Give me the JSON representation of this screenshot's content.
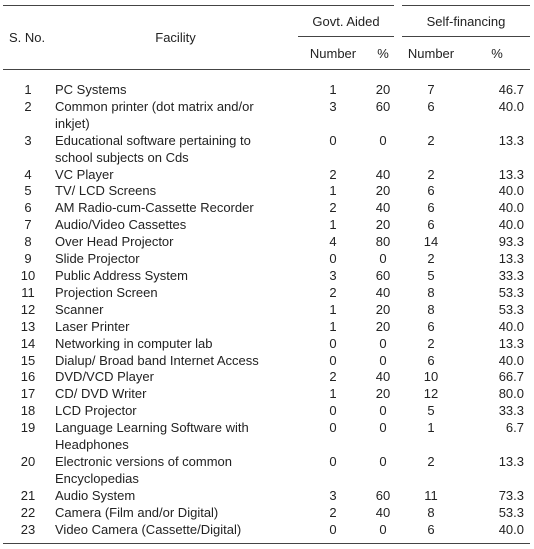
{
  "header": {
    "sno": "S. No.",
    "facility": "Facility",
    "groups": [
      "Govt. Aided",
      "Self-financing"
    ],
    "columns": [
      "Number",
      "%",
      "Number",
      "%"
    ]
  },
  "table": {
    "rows": [
      [
        "1",
        "PC Systems",
        "1",
        "20",
        "7",
        "46.7"
      ],
      [
        "2",
        "Common printer (dot matrix and/or inkjet)",
        "3",
        "60",
        "6",
        "40.0"
      ],
      [
        "3",
        "Educational software pertaining to school subjects on Cds",
        "0",
        "0",
        "2",
        "13.3"
      ],
      [
        "4",
        "VC Player",
        "2",
        "40",
        "2",
        "13.3"
      ],
      [
        "5",
        "TV/ LCD Screens",
        "1",
        "20",
        "6",
        "40.0"
      ],
      [
        "6",
        "AM Radio-cum-Cassette Recorder",
        "2",
        "40",
        "6",
        "40.0"
      ],
      [
        "7",
        "Audio/Video Cassettes",
        "1",
        "20",
        "6",
        "40.0"
      ],
      [
        "8",
        "Over Head Projector",
        "4",
        "80",
        "14",
        "93.3"
      ],
      [
        "9",
        "Slide Projector",
        "0",
        "0",
        "2",
        "13.3"
      ],
      [
        "10",
        "Public Address System",
        "3",
        "60",
        "5",
        "33.3"
      ],
      [
        "11",
        "Projection Screen",
        "2",
        "40",
        "8",
        "53.3"
      ],
      [
        "12",
        "Scanner",
        "1",
        "20",
        "8",
        "53.3"
      ],
      [
        "13",
        "Laser Printer",
        "1",
        "20",
        "6",
        "40.0"
      ],
      [
        "14",
        "Networking in computer lab",
        "0",
        "0",
        "2",
        "13.3"
      ],
      [
        "15",
        "Dialup/ Broad band Internet Access",
        "0",
        "0",
        "6",
        "40.0"
      ],
      [
        "16",
        "DVD/VCD Player",
        "2",
        "40",
        "10",
        "66.7"
      ],
      [
        "17",
        "CD/ DVD Writer",
        "1",
        "20",
        "12",
        "80.0"
      ],
      [
        "18",
        "LCD Projector",
        "0",
        "0",
        "5",
        "33.3"
      ],
      [
        "19",
        "Language Learning Software with Headphones",
        "0",
        "0",
        "1",
        "6.7"
      ],
      [
        "20",
        "Electronic versions of common Encyclopedias",
        "0",
        "0",
        "2",
        "13.3"
      ],
      [
        "21",
        "Audio System",
        "3",
        "60",
        "11",
        "73.3"
      ],
      [
        "22",
        "Camera (Film and/or Digital)",
        "2",
        "40",
        "8",
        "53.3"
      ],
      [
        "23",
        "Video Camera (Cassette/Digital)",
        "0",
        "0",
        "6",
        "40.0"
      ]
    ]
  }
}
